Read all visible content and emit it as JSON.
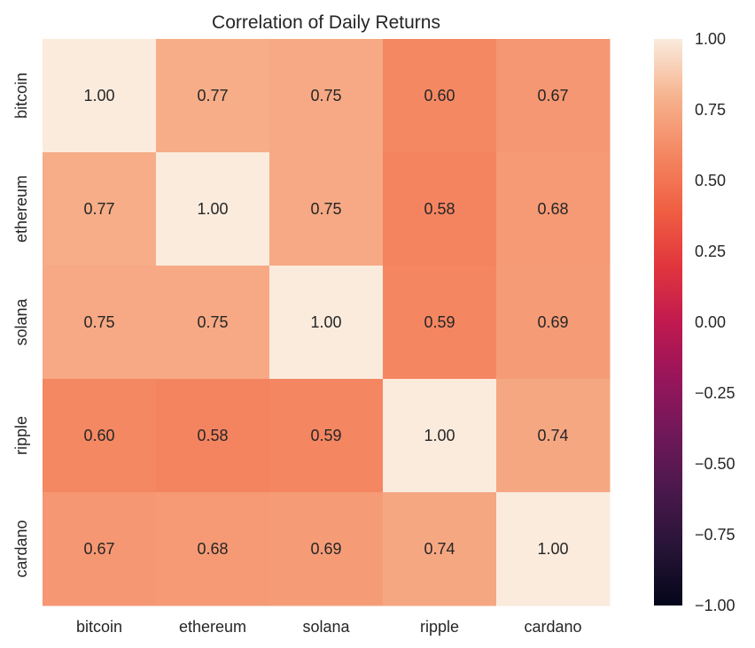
{
  "chart_data": {
    "type": "heatmap",
    "title": "Correlation of Daily Returns",
    "xlabel": "",
    "ylabel": "",
    "x_categories": [
      "bitcoin",
      "ethereum",
      "solana",
      "ripple",
      "cardano"
    ],
    "y_categories": [
      "bitcoin",
      "ethereum",
      "solana",
      "ripple",
      "cardano"
    ],
    "values": [
      [
        1.0,
        0.77,
        0.75,
        0.6,
        0.67
      ],
      [
        0.77,
        1.0,
        0.75,
        0.58,
        0.68
      ],
      [
        0.75,
        0.75,
        1.0,
        0.59,
        0.69
      ],
      [
        0.6,
        0.58,
        0.59,
        1.0,
        0.74
      ],
      [
        0.67,
        0.68,
        0.69,
        0.74,
        1.0
      ]
    ],
    "value_format": "0.00",
    "vmin": -1.0,
    "vmax": 1.0,
    "colormap": "rocket",
    "colorbar": {
      "ticks": [
        1.0,
        0.75,
        0.5,
        0.25,
        0.0,
        -0.25,
        -0.5,
        -0.75,
        -1.0
      ],
      "tick_labels": [
        "1.00",
        "0.75",
        "0.50",
        "0.25",
        "0.00",
        "−0.25",
        "−0.50",
        "−0.75",
        "−1.00"
      ]
    },
    "grid": false
  }
}
